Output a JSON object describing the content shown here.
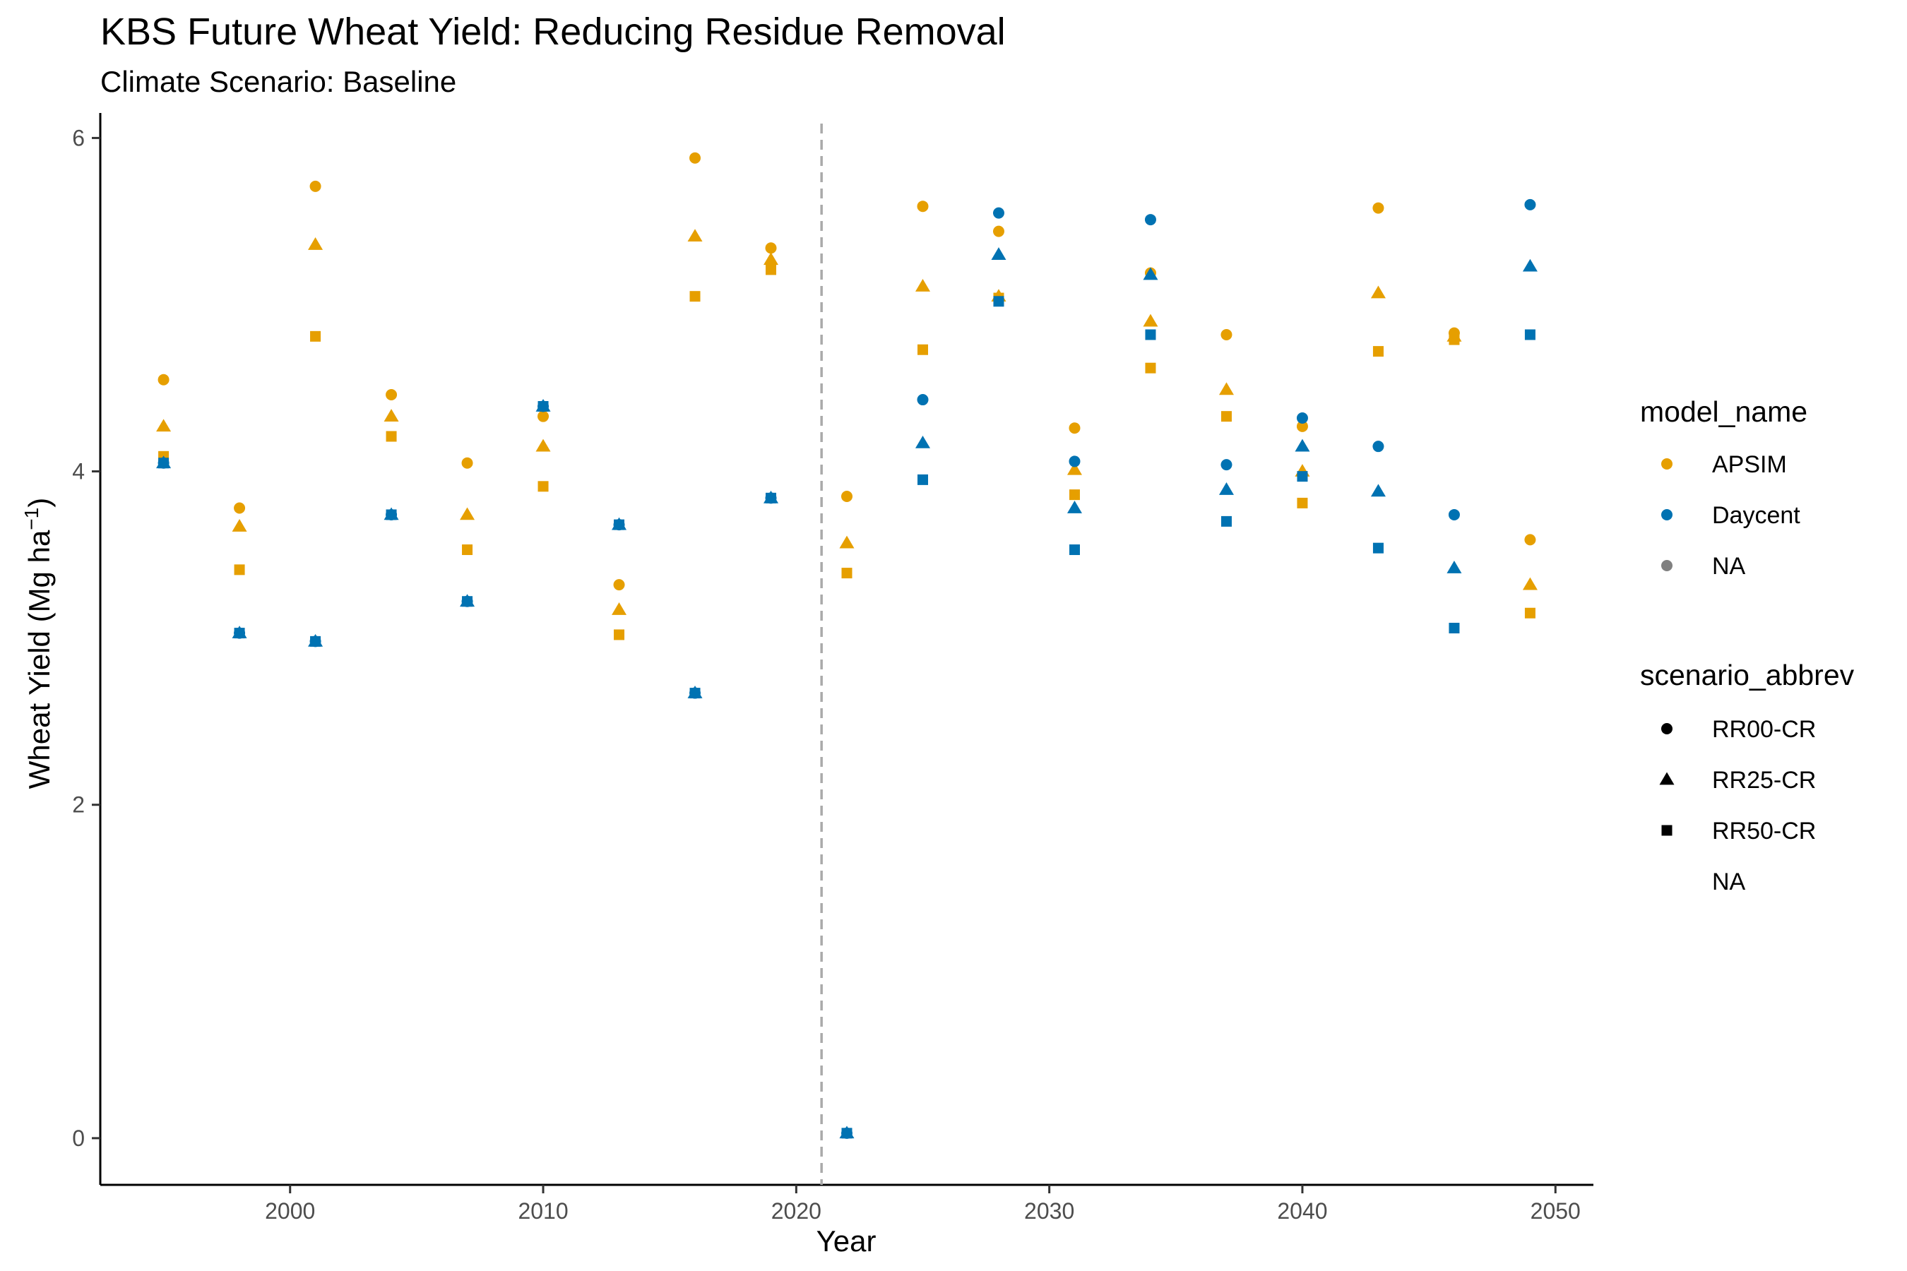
{
  "chart_data": {
    "type": "scatter",
    "title": "KBS Future Wheat Yield: Reducing Residue Removal",
    "subtitle": "Climate Scenario: Baseline",
    "xlabel": "Year",
    "ylabel": "Wheat Yield (Mg ha",
    "ylabel_sup": "−1",
    "ylabel_close": ")",
    "xlim": [
      1992.5,
      2051.5
    ],
    "ylim": [
      -0.28,
      6.15
    ],
    "xticks": [
      2000,
      2010,
      2020,
      2030,
      2040,
      2050
    ],
    "xtick_labels": [
      "2000",
      "2010",
      "2020",
      "2030",
      "2040",
      "2050"
    ],
    "yticks": [
      0,
      2,
      4,
      6
    ],
    "ytick_labels": [
      "0",
      "2",
      "4",
      "6"
    ],
    "grid": false,
    "vline": {
      "x": 2021,
      "style": "dashed",
      "color": "#aaaaaa"
    },
    "colors": {
      "APSIM": "#E69F00",
      "Daycent": "#0072B2",
      "NA": "#808080"
    },
    "legend": {
      "placement": "right",
      "color": {
        "title": "model_name",
        "entries": [
          "APSIM",
          "Daycent",
          "NA"
        ]
      },
      "shape": {
        "title": "scenario_abbrev",
        "entries": [
          "RR00-CR",
          "RR25-CR",
          "RR50-CR",
          "NA"
        ],
        "shapes": [
          "circle",
          "triangle",
          "square",
          "none"
        ]
      }
    },
    "series": [
      {
        "model": "APSIM",
        "scenario": "RR00-CR",
        "x": [
          1995,
          1998,
          2001,
          2004,
          2007,
          2010,
          2013,
          2016,
          2019,
          2022,
          2025,
          2028,
          2031,
          2034,
          2037,
          2040,
          2043,
          2046,
          2049
        ],
        "y": [
          4.55,
          3.78,
          5.71,
          4.46,
          4.05,
          4.33,
          3.32,
          5.88,
          5.34,
          3.85,
          5.59,
          5.44,
          4.26,
          5.19,
          4.82,
          4.27,
          5.58,
          4.83,
          3.59
        ]
      },
      {
        "model": "APSIM",
        "scenario": "RR25-CR",
        "x": [
          1995,
          1998,
          2001,
          2004,
          2007,
          2010,
          2013,
          2016,
          2019,
          2022,
          2025,
          2028,
          2031,
          2034,
          2037,
          2040,
          2043,
          2046,
          2049
        ],
        "y": [
          4.27,
          3.67,
          5.36,
          4.33,
          3.74,
          4.15,
          3.17,
          5.41,
          5.27,
          3.57,
          5.11,
          5.05,
          4.01,
          4.9,
          4.49,
          4.0,
          5.07,
          4.81,
          3.32
        ]
      },
      {
        "model": "APSIM",
        "scenario": "RR50-CR",
        "x": [
          1995,
          1998,
          2001,
          2004,
          2007,
          2010,
          2013,
          2016,
          2019,
          2022,
          2025,
          2028,
          2031,
          2034,
          2037,
          2040,
          2043,
          2046,
          2049
        ],
        "y": [
          4.09,
          3.41,
          4.81,
          4.21,
          3.53,
          3.91,
          3.02,
          5.05,
          5.21,
          3.39,
          4.73,
          5.04,
          3.86,
          4.62,
          4.33,
          3.81,
          4.72,
          4.79,
          3.15
        ]
      },
      {
        "model": "Daycent",
        "scenario": "RR00-CR",
        "x": [
          1995,
          1998,
          2001,
          2004,
          2007,
          2010,
          2013,
          2016,
          2019,
          2022,
          2025,
          2028,
          2031,
          2034,
          2037,
          2040,
          2043,
          2046,
          2049
        ],
        "y": [
          4.05,
          3.03,
          2.98,
          3.74,
          3.22,
          4.39,
          3.68,
          2.67,
          3.84,
          0.03,
          4.43,
          5.55,
          4.06,
          5.51,
          4.04,
          4.32,
          4.15,
          3.74,
          5.6
        ]
      },
      {
        "model": "Daycent",
        "scenario": "RR25-CR",
        "x": [
          1995,
          1998,
          2001,
          2004,
          2007,
          2010,
          2013,
          2016,
          2019,
          2022,
          2025,
          2028,
          2031,
          2034,
          2037,
          2040,
          2043,
          2046,
          2049
        ],
        "y": [
          4.05,
          3.03,
          2.98,
          3.74,
          3.22,
          4.39,
          3.68,
          2.67,
          3.84,
          0.03,
          4.17,
          5.3,
          3.78,
          5.18,
          3.89,
          4.15,
          3.88,
          3.42,
          5.23
        ]
      },
      {
        "model": "Daycent",
        "scenario": "RR50-CR",
        "x": [
          1995,
          1998,
          2001,
          2004,
          2007,
          2010,
          2013,
          2016,
          2019,
          2022,
          2025,
          2028,
          2031,
          2034,
          2037,
          2040,
          2043,
          2046,
          2049
        ],
        "y": [
          4.05,
          3.03,
          2.98,
          3.74,
          3.22,
          4.39,
          3.68,
          2.67,
          3.84,
          0.03,
          3.95,
          5.02,
          3.53,
          4.82,
          3.7,
          3.97,
          3.54,
          3.06,
          4.82
        ]
      }
    ]
  }
}
